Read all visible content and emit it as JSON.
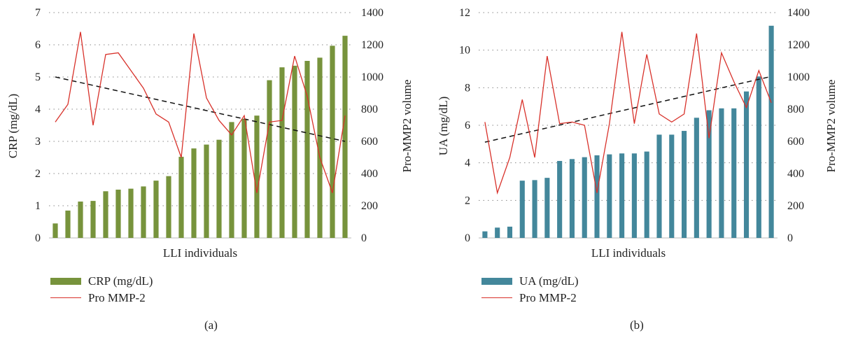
{
  "chart_data": [
    {
      "id": "a",
      "type": "bar",
      "caption": "(a)",
      "xlabel": "LLI individuals",
      "ylabel": "CRP (mg/dL)",
      "y2label": "Pro-MMP2 volume",
      "ylim": [
        0,
        7
      ],
      "y_ticks": [
        "0",
        "1",
        "2",
        "3",
        "4",
        "5",
        "6",
        "7"
      ],
      "y2lim": [
        0,
        1400
      ],
      "y2_ticks": [
        "0",
        "200",
        "400",
        "600",
        "800",
        "1000",
        "1200",
        "1400"
      ],
      "grid": "horizontal dotted",
      "legend_position": "bottom-left",
      "series": [
        {
          "name": "CRP (mg/dL)",
          "type": "bar",
          "axis": "left",
          "color": "#77933c",
          "values": [
            0.45,
            0.85,
            1.13,
            1.15,
            1.45,
            1.5,
            1.53,
            1.6,
            1.78,
            1.92,
            2.52,
            2.78,
            2.9,
            3.05,
            3.6,
            3.7,
            3.8,
            4.9,
            5.3,
            5.35,
            5.5,
            5.6,
            5.97,
            6.28
          ]
        },
        {
          "name": "Pro MMP-2",
          "type": "line",
          "axis": "right",
          "color": "#d8312a",
          "values": [
            720,
            830,
            1280,
            700,
            1140,
            1150,
            1040,
            930,
            770,
            720,
            500,
            1270,
            870,
            730,
            640,
            760,
            280,
            720,
            730,
            1130,
            880,
            500,
            280,
            760
          ]
        },
        {
          "type": "trendline",
          "axis": "left",
          "color": "#111111",
          "start": 5.0,
          "end": 3.0
        }
      ]
    },
    {
      "id": "b",
      "type": "bar",
      "caption": "(b)",
      "xlabel": "LLI individuals",
      "ylabel": "UA (mg/dL)",
      "y2label": "Pro-MMP2 volume",
      "ylim": [
        0,
        12
      ],
      "y_ticks": [
        "0",
        "2",
        "4",
        "6",
        "8",
        "10",
        "12"
      ],
      "y2lim": [
        0,
        1400
      ],
      "y2_ticks": [
        "0",
        "200",
        "400",
        "600",
        "800",
        "1000",
        "1200",
        "1400"
      ],
      "grid": "horizontal dotted",
      "legend_position": "bottom-left",
      "series": [
        {
          "name": "UA (mg/dL)",
          "type": "bar",
          "axis": "left",
          "color": "#43879b",
          "values": [
            0.35,
            0.55,
            0.6,
            3.05,
            3.08,
            3.2,
            4.1,
            4.2,
            4.3,
            4.4,
            4.45,
            4.5,
            4.5,
            4.6,
            5.5,
            5.5,
            5.7,
            6.4,
            6.8,
            6.9,
            6.9,
            7.8,
            8.6,
            11.3
          ]
        },
        {
          "name": "Pro MMP-2",
          "type": "line",
          "axis": "right",
          "color": "#d8312a",
          "values": [
            720,
            280,
            500,
            860,
            500,
            1130,
            710,
            720,
            700,
            280,
            710,
            1280,
            710,
            1140,
            770,
            720,
            770,
            1270,
            620,
            1150,
            970,
            810,
            1040,
            840
          ]
        },
        {
          "type": "trendline",
          "axis": "left",
          "color": "#111111",
          "start": 5.1,
          "end": 8.6
        }
      ]
    }
  ]
}
